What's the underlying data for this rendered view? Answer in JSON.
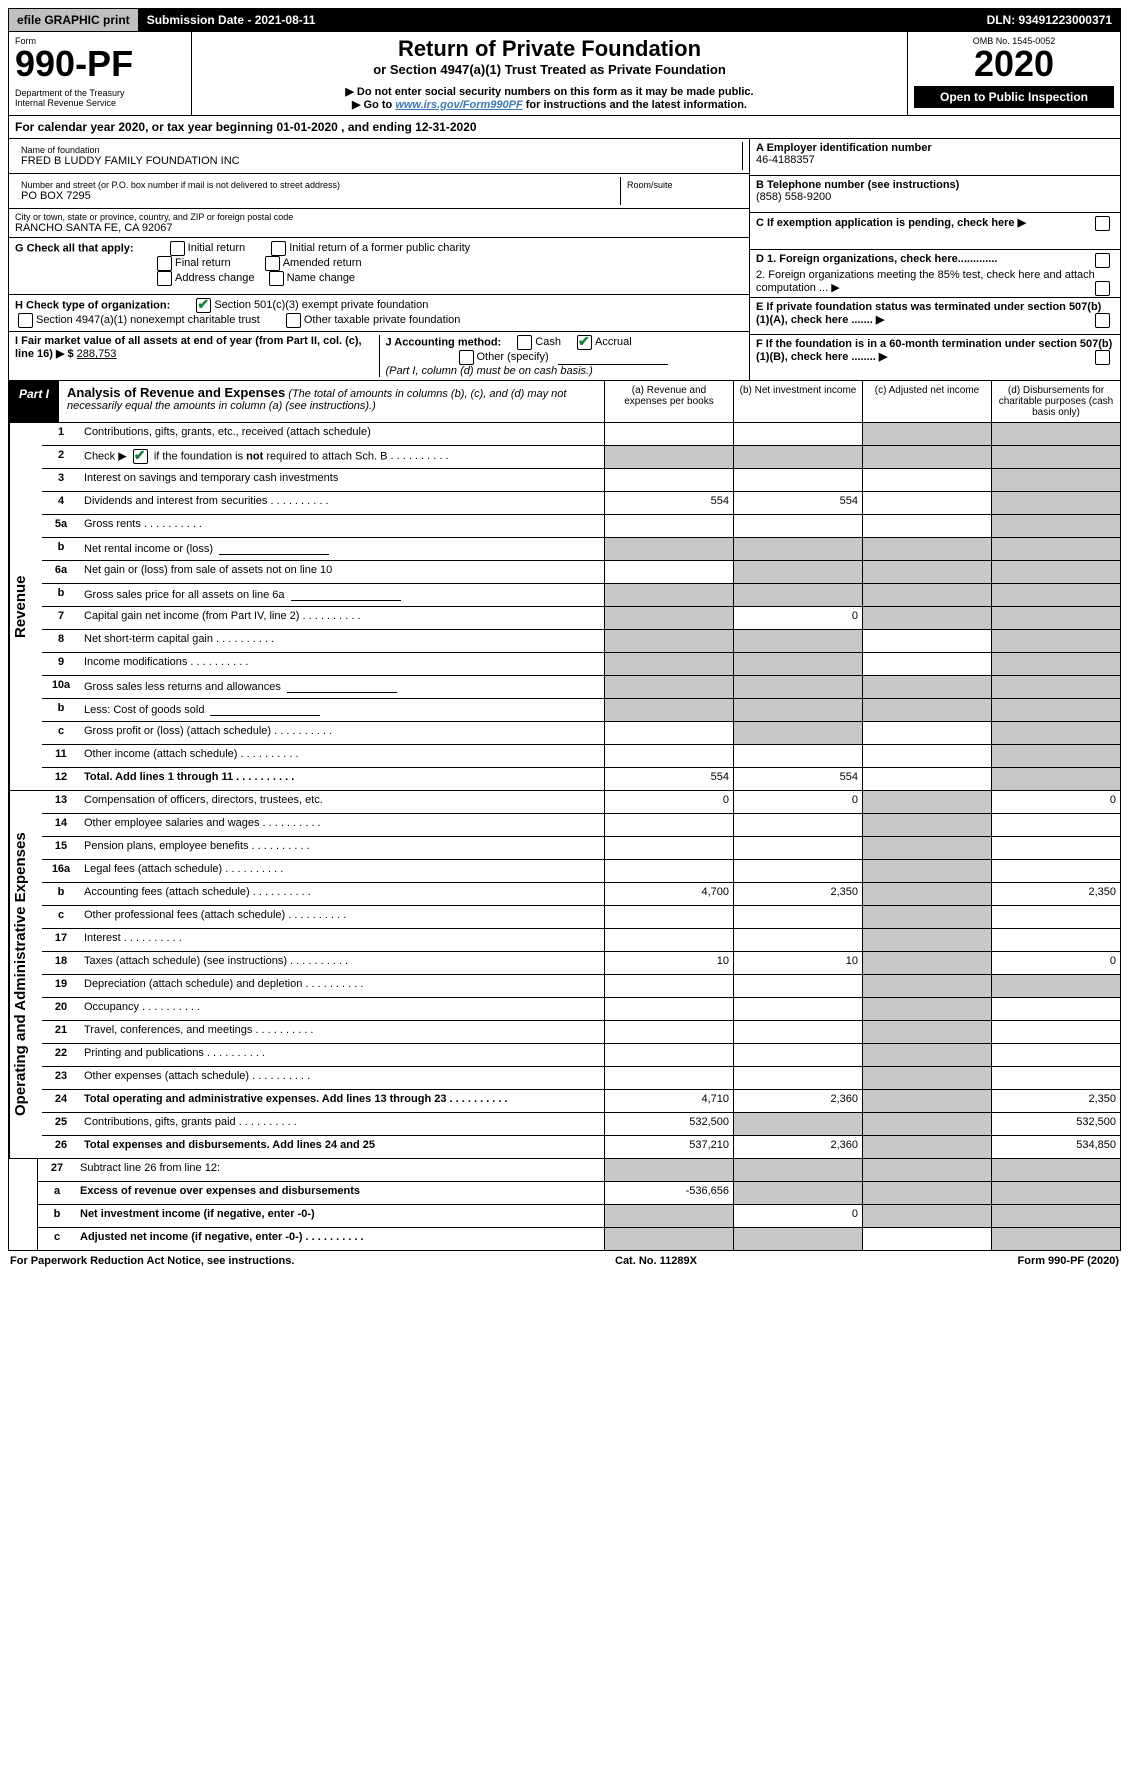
{
  "topbar": {
    "efile": "efile GRAPHIC print",
    "subdate_label": "Submission Date - 2021-08-11",
    "dln_label": "DLN: 93491223000371"
  },
  "header": {
    "form_word": "Form",
    "form_no": "990-PF",
    "dept": "Department of the Treasury",
    "irs": "Internal Revenue Service",
    "title": "Return of Private Foundation",
    "subtitle": "or Section 4947(a)(1) Trust Treated as Private Foundation",
    "note1": "▶ Do not enter social security numbers on this form as it may be made public.",
    "note2_pre": "▶ Go to ",
    "note2_link": "www.irs.gov/Form990PF",
    "note2_post": " for instructions and the latest information.",
    "omb": "OMB No. 1545-0052",
    "year": "2020",
    "open": "Open to Public Inspection"
  },
  "cal": "For calendar year 2020, or tax year beginning 01-01-2020               , and ending 12-31-2020",
  "left": {
    "name_lbl": "Name of foundation",
    "name": "FRED B LUDDY FAMILY FOUNDATION INC",
    "addr_lbl": "Number and street (or P.O. box number if mail is not delivered to street address)",
    "addr": "PO BOX 7295",
    "room_lbl": "Room/suite",
    "city_lbl": "City or town, state or province, country, and ZIP or foreign postal code",
    "city": "RANCHO SANTA FE, CA  92067",
    "g": "G Check all that apply:",
    "g1": "Initial return",
    "g2": "Initial return of a former public charity",
    "g3": "Final return",
    "g4": "Amended return",
    "g5": "Address change",
    "g6": "Name change",
    "h": "H Check type of organization:",
    "h1": "Section 501(c)(3) exempt private foundation",
    "h2": "Section 4947(a)(1) nonexempt charitable trust",
    "h3": "Other taxable private foundation",
    "i": "I Fair market value of all assets at end of year (from Part II, col. (c), line 16) ▶ $",
    "i_val": "288,753",
    "j": "J Accounting method:",
    "j1": "Cash",
    "j2": "Accrual",
    "j3": "Other (specify)",
    "j_note": "(Part I, column (d) must be on cash basis.)"
  },
  "right": {
    "a_lbl": "A Employer identification number",
    "a_val": "46-4188357",
    "b_lbl": "B Telephone number (see instructions)",
    "b_val": "(858) 558-9200",
    "c_lbl": "C If exemption application is pending, check here ▶",
    "d1": "D 1. Foreign organizations, check here.............",
    "d2": "2. Foreign organizations meeting the 85% test, check here and attach computation ... ▶",
    "e": "E  If private foundation status was terminated under section 507(b)(1)(A), check here ....... ▶",
    "f": "F  If the foundation is in a 60-month termination under section 507(b)(1)(B), check here ........ ▶"
  },
  "part1": {
    "tab": "Part I",
    "title": "Analysis of Revenue and Expenses",
    "title_note": "(The total of amounts in columns (b), (c), and (d) may not necessarily equal the amounts in column (a) (see instructions).)",
    "col_a": "(a)   Revenue and expenses per books",
    "col_b": "(b)  Net investment income",
    "col_c": "(c)  Adjusted net income",
    "col_d": "(d)  Disbursements for charitable purposes (cash basis only)"
  },
  "rows": [
    {
      "n": "1",
      "d": "Contributions, gifts, grants, etc., received (attach schedule)",
      "a": "",
      "b": "",
      "c": "s",
      "dd": "s"
    },
    {
      "n": "2",
      "d": "Check ▶ __CK__ if the foundation is not required to attach Sch. B",
      "dots": true,
      "a": "s",
      "b": "s",
      "c": "s",
      "dd": "s",
      "ck": true
    },
    {
      "n": "3",
      "d": "Interest on savings and temporary cash investments",
      "a": "",
      "b": "",
      "c": "",
      "dd": "s"
    },
    {
      "n": "4",
      "d": "Dividends and interest from securities",
      "dots": true,
      "a": "554",
      "b": "554",
      "c": "",
      "dd": "s"
    },
    {
      "n": "5a",
      "d": "Gross rents",
      "dots": true,
      "a": "",
      "b": "",
      "c": "",
      "dd": "s"
    },
    {
      "n": "b",
      "d": "Net rental income or (loss)",
      "mini": true,
      "a": "s",
      "b": "s",
      "c": "s",
      "dd": "s"
    },
    {
      "n": "6a",
      "d": "Net gain or (loss) from sale of assets not on line 10",
      "a": "",
      "b": "s",
      "c": "s",
      "dd": "s"
    },
    {
      "n": "b",
      "d": "Gross sales price for all assets on line 6a",
      "mini": true,
      "a": "s",
      "b": "s",
      "c": "s",
      "dd": "s"
    },
    {
      "n": "7",
      "d": "Capital gain net income (from Part IV, line 2)",
      "dots": true,
      "a": "s",
      "b": "0",
      "c": "s",
      "dd": "s"
    },
    {
      "n": "8",
      "d": "Net short-term capital gain",
      "dots": true,
      "a": "s",
      "b": "s",
      "c": "",
      "dd": "s"
    },
    {
      "n": "9",
      "d": "Income modifications",
      "dots": true,
      "a": "s",
      "b": "s",
      "c": "",
      "dd": "s"
    },
    {
      "n": "10a",
      "d": "Gross sales less returns and allowances",
      "mini": true,
      "a": "s",
      "b": "s",
      "c": "s",
      "dd": "s"
    },
    {
      "n": "b",
      "d": "Less: Cost of goods sold",
      "dots": false,
      "mini": true,
      "a": "s",
      "b": "s",
      "c": "s",
      "dd": "s"
    },
    {
      "n": "c",
      "d": "Gross profit or (loss) (attach schedule)",
      "dots": true,
      "a": "",
      "b": "s",
      "c": "",
      "dd": "s"
    },
    {
      "n": "11",
      "d": "Other income (attach schedule)",
      "dots": true,
      "a": "",
      "b": "",
      "c": "",
      "dd": "s"
    },
    {
      "n": "12",
      "d": "Total. Add lines 1 through 11",
      "dots": true,
      "bold": true,
      "a": "554",
      "b": "554",
      "c": "",
      "dd": "s"
    }
  ],
  "rows2": [
    {
      "n": "13",
      "d": "Compensation of officers, directors, trustees, etc.",
      "a": "0",
      "b": "0",
      "c": "s",
      "dd": "0"
    },
    {
      "n": "14",
      "d": "Other employee salaries and wages",
      "dots": true,
      "a": "",
      "b": "",
      "c": "s",
      "dd": ""
    },
    {
      "n": "15",
      "d": "Pension plans, employee benefits",
      "dots": true,
      "a": "",
      "b": "",
      "c": "s",
      "dd": ""
    },
    {
      "n": "16a",
      "d": "Legal fees (attach schedule)",
      "dots": true,
      "a": "",
      "b": "",
      "c": "s",
      "dd": ""
    },
    {
      "n": "b",
      "d": "Accounting fees (attach schedule)",
      "dots": true,
      "a": "4,700",
      "b": "2,350",
      "c": "s",
      "dd": "2,350"
    },
    {
      "n": "c",
      "d": "Other professional fees (attach schedule)",
      "dots": true,
      "a": "",
      "b": "",
      "c": "s",
      "dd": ""
    },
    {
      "n": "17",
      "d": "Interest",
      "dots": true,
      "a": "",
      "b": "",
      "c": "s",
      "dd": ""
    },
    {
      "n": "18",
      "d": "Taxes (attach schedule) (see instructions)",
      "dots": true,
      "a": "10",
      "b": "10",
      "c": "s",
      "dd": "0"
    },
    {
      "n": "19",
      "d": "Depreciation (attach schedule) and depletion",
      "dots": true,
      "a": "",
      "b": "",
      "c": "s",
      "dd": "s"
    },
    {
      "n": "20",
      "d": "Occupancy",
      "dots": true,
      "a": "",
      "b": "",
      "c": "s",
      "dd": ""
    },
    {
      "n": "21",
      "d": "Travel, conferences, and meetings",
      "dots": true,
      "a": "",
      "b": "",
      "c": "s",
      "dd": ""
    },
    {
      "n": "22",
      "d": "Printing and publications",
      "dots": true,
      "a": "",
      "b": "",
      "c": "s",
      "dd": ""
    },
    {
      "n": "23",
      "d": "Other expenses (attach schedule)",
      "dots": true,
      "a": "",
      "b": "",
      "c": "s",
      "dd": ""
    },
    {
      "n": "24",
      "d": "Total operating and administrative expenses. Add lines 13 through 23",
      "dots": true,
      "bold": true,
      "a": "4,710",
      "b": "2,360",
      "c": "s",
      "dd": "2,350"
    },
    {
      "n": "25",
      "d": "Contributions, gifts, grants paid",
      "dots": true,
      "a": "532,500",
      "b": "s",
      "c": "s",
      "dd": "532,500"
    },
    {
      "n": "26",
      "d": "Total expenses and disbursements. Add lines 24 and 25",
      "bold": true,
      "a": "537,210",
      "b": "2,360",
      "c": "s",
      "dd": "534,850"
    }
  ],
  "rows3": [
    {
      "n": "27",
      "d": "Subtract line 26 from line 12:",
      "a": "s",
      "b": "s",
      "c": "s",
      "dd": "s"
    },
    {
      "n": "a",
      "d": "Excess of revenue over expenses and disbursements",
      "bold": true,
      "a": "-536,656",
      "b": "s",
      "c": "s",
      "dd": "s"
    },
    {
      "n": "b",
      "d": "Net investment income (if negative, enter -0-)",
      "bold": true,
      "a": "s",
      "b": "0",
      "c": "s",
      "dd": "s"
    },
    {
      "n": "c",
      "d": "Adjusted net income (if negative, enter -0-)",
      "dots": true,
      "bold": true,
      "a": "s",
      "b": "s",
      "c": "",
      "dd": "s"
    }
  ],
  "side1": "Revenue",
  "side2": "Operating and Administrative Expenses",
  "footer": {
    "left": "For Paperwork Reduction Act Notice, see instructions.",
    "mid": "Cat. No. 11289X",
    "right": "Form 990-PF (2020)"
  }
}
